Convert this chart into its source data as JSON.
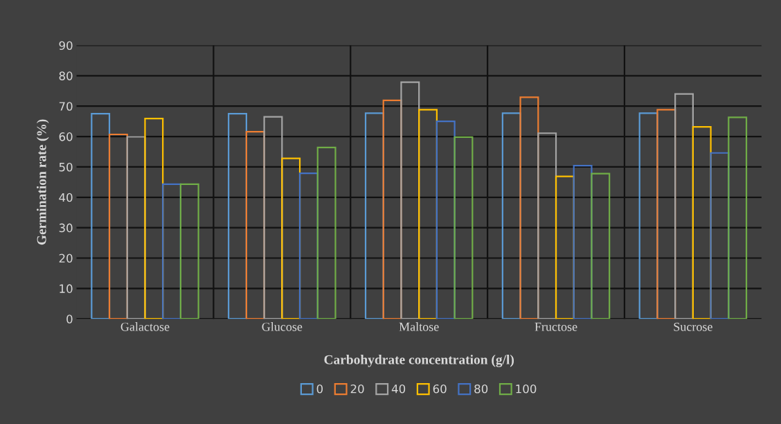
{
  "chart_data": {
    "type": "bar",
    "xlabel": "Carbohydrate concentration (g/l)",
    "ylabel": "Germination rate (%)",
    "categories": [
      "Galactose",
      "Glucose",
      "Maltose",
      "Fructose",
      "Sucrose"
    ],
    "series": [
      {
        "name": "0",
        "color": "#5b9bd5",
        "values": [
          67.5,
          67.5,
          67.7,
          67.7,
          67.7
        ]
      },
      {
        "name": "20",
        "color": "#ed7d31",
        "values": [
          60.7,
          61.6,
          71.9,
          72.9,
          68.8
        ]
      },
      {
        "name": "40",
        "color": "#a5a5a5",
        "values": [
          59.9,
          66.5,
          77.9,
          61.1,
          74.0
        ]
      },
      {
        "name": "60",
        "color": "#ffc000",
        "values": [
          65.9,
          52.8,
          68.8,
          46.9,
          63.2
        ]
      },
      {
        "name": "80",
        "color": "#4472c4",
        "values": [
          44.3,
          47.9,
          65.0,
          50.4,
          54.6
        ]
      },
      {
        "name": "100",
        "color": "#70ad47",
        "values": [
          44.3,
          56.4,
          59.8,
          47.8,
          66.3
        ]
      }
    ],
    "ylim": [
      0,
      90
    ],
    "yticks": [
      0,
      10,
      20,
      30,
      40,
      50,
      60,
      70,
      80,
      90
    ],
    "grid": true,
    "legend": "bottom"
  }
}
